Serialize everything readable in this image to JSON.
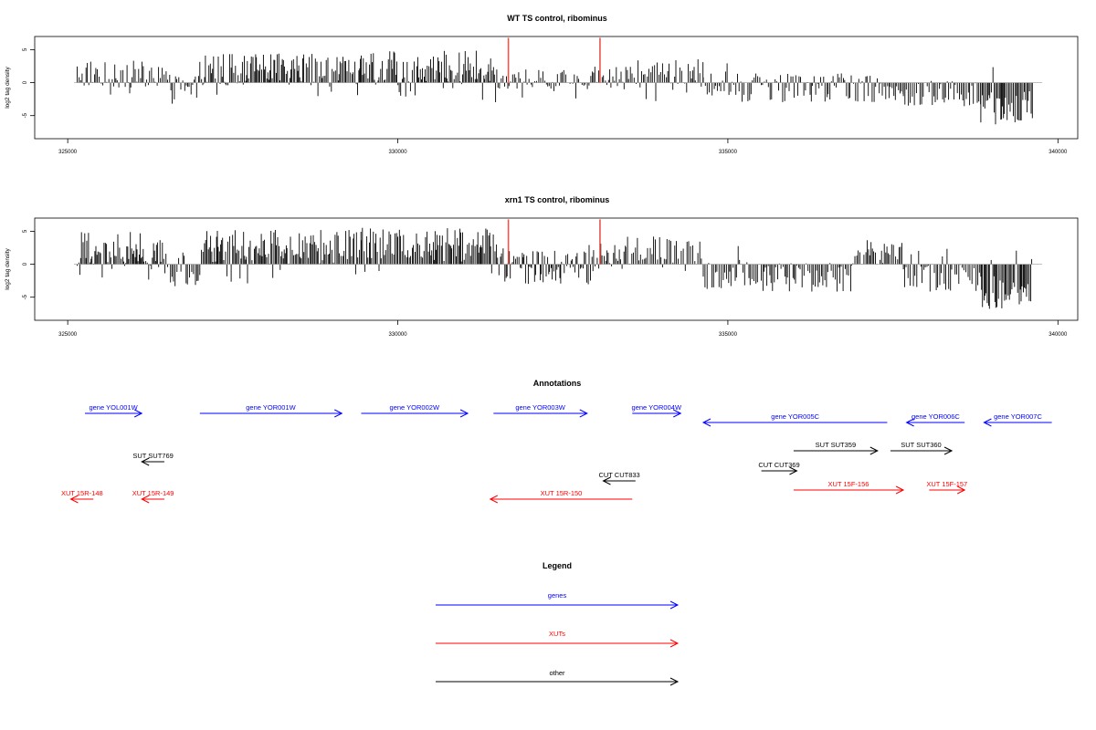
{
  "chart_data": [
    {
      "type": "bar",
      "title": "WT TS control, ribominus",
      "ylabel": "log2 tag density",
      "xlabel": "",
      "xlim": [
        324500,
        340300
      ],
      "ylim": [
        -8.5,
        7
      ],
      "x_ticks": [
        325000,
        330000,
        335000,
        340000
      ],
      "y_ticks": [
        -5,
        0,
        5
      ],
      "x_tick_labels": [
        "325000",
        "330000",
        "335000",
        "340000"
      ],
      "y_tick_labels": [
        "-5",
        "0",
        "5"
      ],
      "bar_color": "#000000",
      "baseline_color": "#999999",
      "highlights": [
        {
          "x": 331480,
          "y": 6.8
        },
        {
          "x": 332900,
          "y": 6.8
        }
      ],
      "highlight_color": "#e8554e",
      "regions": [
        {
          "start": 324800,
          "end": 325400,
          "mean": 1.5,
          "spread": 2.2
        },
        {
          "start": 325400,
          "end": 326200,
          "mean": 1.2,
          "spread": 2.2
        },
        {
          "start": 326200,
          "end": 326700,
          "mean": -1.0,
          "spread": 2.2
        },
        {
          "start": 326700,
          "end": 329200,
          "mean": 2.0,
          "spread": 2.4
        },
        {
          "start": 329200,
          "end": 331300,
          "mean": 2.3,
          "spread": 2.6
        },
        {
          "start": 331300,
          "end": 332800,
          "mean": 0.5,
          "spread": 1.5
        },
        {
          "start": 332800,
          "end": 333300,
          "mean": 1.0,
          "spread": 1.8
        },
        {
          "start": 333300,
          "end": 334500,
          "mean": 1.7,
          "spread": 2.0
        },
        {
          "start": 334500,
          "end": 337600,
          "mean": -0.8,
          "spread": 2.2
        },
        {
          "start": 337600,
          "end": 338800,
          "mean": -1.6,
          "spread": 2.0
        },
        {
          "start": 338800,
          "end": 339600,
          "mean": -3.8,
          "spread": 2.6
        }
      ]
    },
    {
      "type": "bar",
      "title": "xrn1 TS control, ribominus",
      "ylabel": "log2 tag density",
      "xlabel": "",
      "xlim": [
        324500,
        340300
      ],
      "ylim": [
        -8.5,
        7
      ],
      "x_ticks": [
        325000,
        330000,
        335000,
        340000
      ],
      "y_ticks": [
        -5,
        0,
        5
      ],
      "x_tick_labels": [
        "325000",
        "330000",
        "335000",
        "340000"
      ],
      "y_tick_labels": [
        "-5",
        "0",
        "5"
      ],
      "bar_color": "#000000",
      "baseline_color": "#999999",
      "highlights": [
        {
          "x": 331480,
          "y": 6.8
        },
        {
          "x": 332900,
          "y": 6.8
        }
      ],
      "highlight_color": "#e8554e",
      "regions": [
        {
          "start": 324800,
          "end": 326200,
          "mean": 2.3,
          "spread": 2.6
        },
        {
          "start": 326200,
          "end": 326700,
          "mean": -1.2,
          "spread": 2.2
        },
        {
          "start": 326700,
          "end": 329200,
          "mean": 2.6,
          "spread": 2.6
        },
        {
          "start": 329200,
          "end": 331300,
          "mean": 3.0,
          "spread": 2.6
        },
        {
          "start": 331300,
          "end": 332800,
          "mean": -0.5,
          "spread": 2.6
        },
        {
          "start": 332800,
          "end": 333300,
          "mean": 1.5,
          "spread": 2.2
        },
        {
          "start": 333300,
          "end": 334500,
          "mean": 2.0,
          "spread": 2.2
        },
        {
          "start": 334500,
          "end": 336800,
          "mean": -2.0,
          "spread": 2.2
        },
        {
          "start": 336800,
          "end": 337600,
          "mean": 1.5,
          "spread": 2.2
        },
        {
          "start": 337600,
          "end": 338800,
          "mean": -2.0,
          "spread": 2.2
        },
        {
          "start": 338800,
          "end": 339600,
          "mean": -4.3,
          "spread": 2.6
        }
      ]
    }
  ],
  "annotations": {
    "title": "Annotations",
    "colors": {
      "genes": "#0000ff",
      "XUTs": "#ff0000",
      "other": "#000000"
    },
    "features": [
      {
        "label": "gene YOL001W",
        "start": 324920,
        "end": 325800,
        "row": 0,
        "strand": "+",
        "kind": "genes"
      },
      {
        "label": "gene YOR001W",
        "start": 326700,
        "end": 328900,
        "row": 0,
        "strand": "+",
        "kind": "genes"
      },
      {
        "label": "gene YOR002W",
        "start": 329200,
        "end": 330850,
        "row": 0,
        "strand": "+",
        "kind": "genes"
      },
      {
        "label": "gene YOR003W",
        "start": 331250,
        "end": 332700,
        "row": 0,
        "strand": "+",
        "kind": "genes"
      },
      {
        "label": "gene YOR004W",
        "start": 333400,
        "end": 334150,
        "row": 0,
        "strand": "+",
        "kind": "genes"
      },
      {
        "label": "gene YOR005C",
        "start": 334500,
        "end": 337350,
        "row": 1,
        "strand": "-",
        "kind": "genes"
      },
      {
        "label": "gene YOR006C",
        "start": 337650,
        "end": 338550,
        "row": 1,
        "strand": "-",
        "kind": "genes"
      },
      {
        "label": "gene YOR007C",
        "start": 338850,
        "end": 339900,
        "row": 1,
        "strand": "-",
        "kind": "genes"
      },
      {
        "label": "SUT SUT769",
        "start": 325800,
        "end": 326150,
        "row": 4,
        "strand": "-",
        "kind": "other"
      },
      {
        "label": "SUT SUT359",
        "start": 335900,
        "end": 337200,
        "row": 3,
        "strand": "+",
        "kind": "other"
      },
      {
        "label": "SUT SUT360",
        "start": 337400,
        "end": 338350,
        "row": 3,
        "strand": "+",
        "kind": "other"
      },
      {
        "label": "CUT CUT833",
        "start": 332950,
        "end": 333450,
        "row": 6,
        "strand": "-",
        "kind": "other"
      },
      {
        "label": "CUT CUT369",
        "start": 335400,
        "end": 335950,
        "row": 5,
        "strand": "+",
        "kind": "other"
      },
      {
        "label": "XUT 15R-148",
        "start": 324700,
        "end": 325050,
        "row": 8,
        "strand": "-",
        "kind": "XUTs"
      },
      {
        "label": "XUT 15R-149",
        "start": 325800,
        "end": 326150,
        "row": 8,
        "strand": "-",
        "kind": "XUTs"
      },
      {
        "label": "XUT 15R-150",
        "start": 331200,
        "end": 333400,
        "row": 8,
        "strand": "-",
        "kind": "XUTs"
      },
      {
        "label": "XUT 15F-156",
        "start": 335900,
        "end": 337600,
        "row": 7,
        "strand": "+",
        "kind": "XUTs"
      },
      {
        "label": "XUT 15F-157",
        "start": 338000,
        "end": 338550,
        "row": 7,
        "strand": "+",
        "kind": "XUTs"
      }
    ]
  },
  "legend": {
    "title": "Legend",
    "items": [
      {
        "label": "genes",
        "color": "#0000ff"
      },
      {
        "label": "XUTs",
        "color": "#ff0000"
      },
      {
        "label": "other",
        "color": "#000000"
      }
    ]
  }
}
